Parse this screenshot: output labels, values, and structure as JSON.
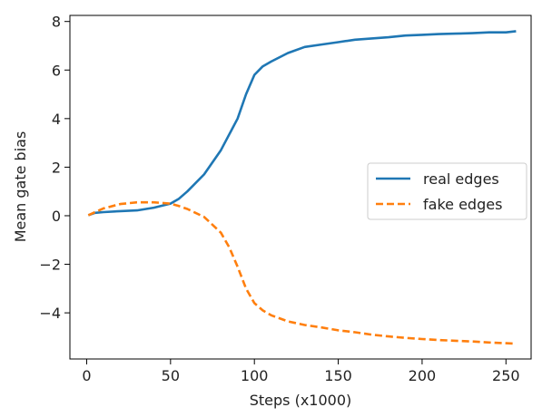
{
  "chart_data": {
    "type": "line",
    "xlabel": "Steps (x1000)",
    "ylabel": "Mean gate bias",
    "xlim": [
      -10,
      265
    ],
    "ylim": [
      -5.9,
      8.25
    ],
    "xticks": [
      0,
      50,
      100,
      150,
      200,
      250
    ],
    "xtick_labels": [
      "0",
      "50",
      "100",
      "150",
      "200",
      "250"
    ],
    "yticks": [
      -4,
      -2,
      0,
      2,
      4,
      6,
      8
    ],
    "ytick_labels": [
      "−4",
      "−2",
      "0",
      "2",
      "4",
      "6",
      "8"
    ],
    "grid": false,
    "legend_position": "center-right",
    "series": [
      {
        "name": "real edges",
        "color": "#1f77b4",
        "style": "solid",
        "x": [
          1,
          5,
          10,
          20,
          30,
          40,
          50,
          55,
          60,
          70,
          80,
          90,
          95,
          100,
          105,
          110,
          120,
          130,
          140,
          150,
          160,
          170,
          180,
          190,
          200,
          210,
          220,
          230,
          240,
          250,
          256
        ],
        "y": [
          0.02,
          0.12,
          0.15,
          0.19,
          0.22,
          0.33,
          0.5,
          0.7,
          1.0,
          1.7,
          2.7,
          4.0,
          5.0,
          5.8,
          6.15,
          6.35,
          6.7,
          6.95,
          7.05,
          7.15,
          7.25,
          7.3,
          7.35,
          7.42,
          7.45,
          7.48,
          7.5,
          7.52,
          7.55,
          7.55,
          7.6
        ]
      },
      {
        "name": "fake edges",
        "color": "#ff7f0e",
        "style": "dashed",
        "x": [
          1,
          5,
          10,
          20,
          30,
          40,
          50,
          55,
          60,
          70,
          80,
          85,
          90,
          95,
          100,
          105,
          110,
          120,
          130,
          140,
          150,
          160,
          170,
          180,
          190,
          200,
          210,
          220,
          230,
          240,
          250,
          256
        ],
        "y": [
          0.02,
          0.15,
          0.3,
          0.48,
          0.55,
          0.55,
          0.5,
          0.4,
          0.28,
          -0.05,
          -0.7,
          -1.3,
          -2.1,
          -3.0,
          -3.6,
          -3.9,
          -4.1,
          -4.35,
          -4.5,
          -4.6,
          -4.72,
          -4.8,
          -4.9,
          -4.97,
          -5.03,
          -5.08,
          -5.12,
          -5.15,
          -5.18,
          -5.22,
          -5.25,
          -5.27
        ]
      }
    ]
  }
}
